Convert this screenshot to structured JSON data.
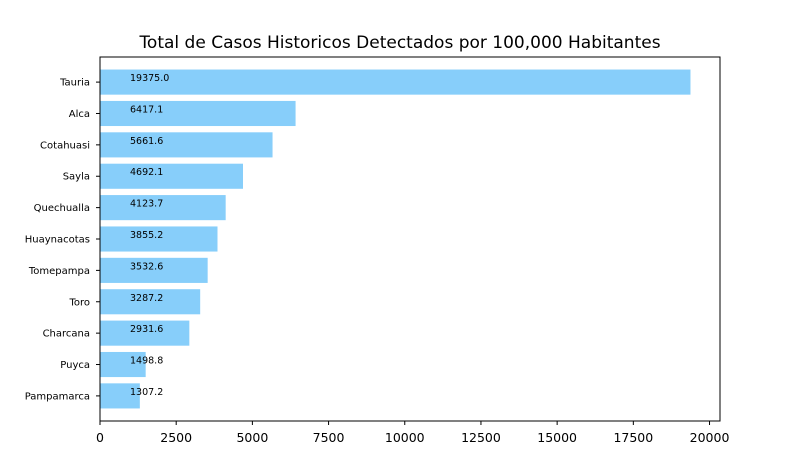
{
  "chart_data": {
    "type": "bar",
    "orientation": "horizontal",
    "title": "Total de Casos Historicos Detectados por 100,000 Habitantes",
    "xlabel": "",
    "ylabel": "",
    "categories": [
      "Tauria",
      "Alca",
      "Cotahuasi",
      "Sayla",
      "Quechualla",
      "Huaynacotas",
      "Tomepampa",
      "Toro",
      "Charcana",
      "Puyca",
      "Pampamarca"
    ],
    "values": [
      19375.0,
      6417.1,
      5661.6,
      4692.1,
      4123.7,
      3855.2,
      3532.6,
      3287.2,
      2931.6,
      1498.8,
      1307.2
    ],
    "data_labels": [
      "19375.0",
      "6417.1",
      "5661.6",
      "4692.1",
      "4123.7",
      "3855.2",
      "3532.6",
      "3287.2",
      "2931.6",
      "1498.8",
      "1307.2"
    ],
    "xlim": [
      0,
      20343.75
    ],
    "xticks": [
      0,
      2500,
      5000,
      7500,
      10000,
      12500,
      15000,
      17500,
      20000
    ],
    "xtick_labels": [
      "0",
      "2500",
      "5000",
      "7500",
      "10000",
      "12500",
      "15000",
      "17500",
      "20000"
    ],
    "bar_color": "#87cefa",
    "grid": false,
    "legend": "none"
  }
}
